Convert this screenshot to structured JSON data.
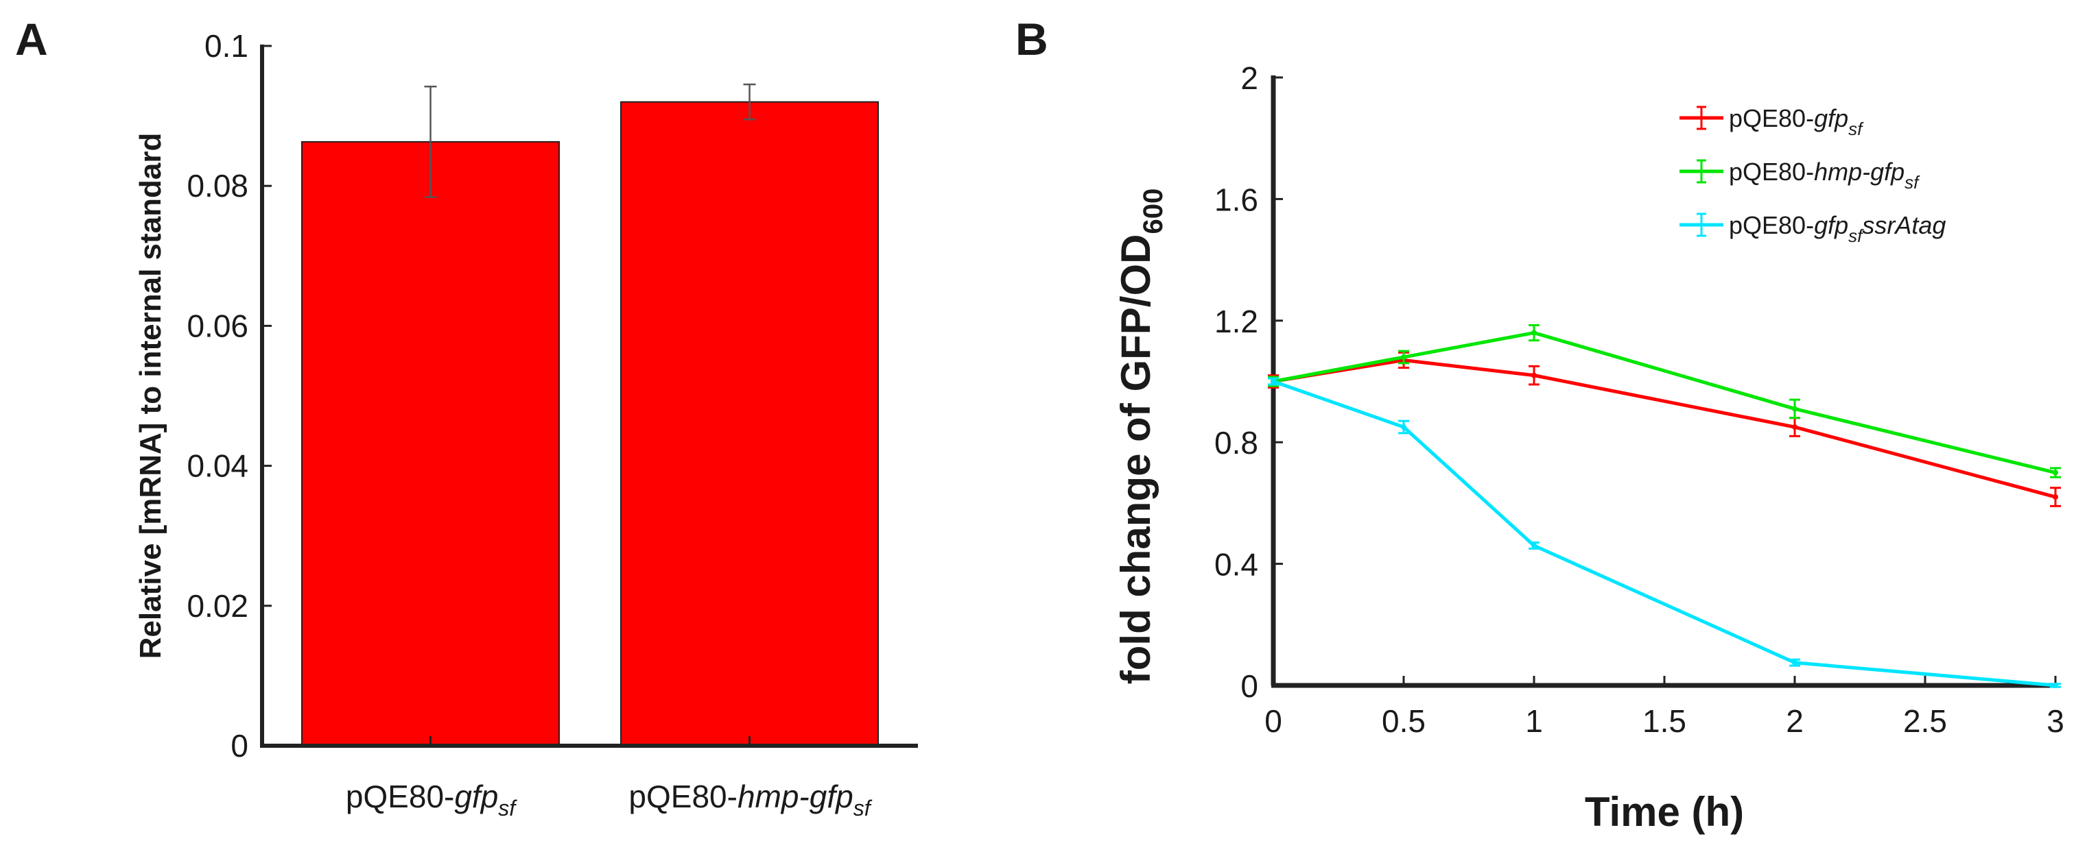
{
  "chart_data": [
    {
      "panel": "A",
      "type": "bar",
      "title": "",
      "xlabel": "",
      "ylabel": "Relative [mRNA] to internal standard",
      "ylim": [
        0,
        0.1
      ],
      "yticks": [
        "0",
        "0.02",
        "0.04",
        "0.06",
        "0.08",
        "0.1"
      ],
      "ytick_values": [
        0,
        0.02,
        0.04,
        0.06,
        0.08,
        0.1
      ],
      "bar_color": "#ff0000",
      "categories": [
        {
          "prefix": "pQE80-",
          "italic": "gfp",
          "sub": "sf",
          "suffix": ""
        },
        {
          "prefix": "pQE80-",
          "italic": "hmp-gfp",
          "sub": "sf",
          "suffix": ""
        }
      ],
      "values": [
        0.0863,
        0.092
      ],
      "errors": [
        0.0079,
        0.0025
      ]
    },
    {
      "panel": "B",
      "type": "line",
      "title": "",
      "xlabel": "Time (h)",
      "ylabel": {
        "main": "fold change of GFP/OD",
        "sub": "600"
      },
      "xlim": [
        0,
        3
      ],
      "ylim": [
        0,
        2
      ],
      "xticks": [
        "0",
        "0.5",
        "1",
        "1.5",
        "2",
        "2.5",
        "3"
      ],
      "xtick_values": [
        0,
        0.5,
        1,
        1.5,
        2,
        2.5,
        3
      ],
      "yticks": [
        "0",
        "0.4",
        "0.8",
        "1.2",
        "1.6",
        "2"
      ],
      "ytick_values": [
        0,
        0.4,
        0.8,
        1.2,
        1.6,
        2
      ],
      "legend_position": "top-right",
      "x": [
        0,
        0.5,
        1,
        2,
        3
      ],
      "series": [
        {
          "name": {
            "prefix": "pQE80-",
            "italic": "gfp",
            "sub": "sf",
            "suffix": ""
          },
          "color": "#ff0000",
          "values": [
            1.0,
            1.07,
            1.02,
            0.85,
            0.62
          ],
          "errors": [
            0.02,
            0.025,
            0.03,
            0.03,
            0.03
          ]
        },
        {
          "name": {
            "prefix": "pQE80-",
            "italic": "hmp-gfp",
            "sub": "sf",
            "suffix": ""
          },
          "color": "#00e600",
          "values": [
            1.0,
            1.08,
            1.16,
            0.91,
            0.7
          ],
          "errors": [
            0.015,
            0.02,
            0.025,
            0.03,
            0.015
          ]
        },
        {
          "name": {
            "prefix": "pQE80-",
            "italic": "gfp",
            "sub": "sf",
            "suffix": "ssrAtag"
          },
          "color": "#00e5ff",
          "values": [
            1.0,
            0.85,
            0.46,
            0.075,
            0.0
          ],
          "errors": [
            0.01,
            0.02,
            0.01,
            0.01,
            0.005
          ]
        }
      ]
    }
  ],
  "panel_labels": {
    "a": "A",
    "b": "B"
  }
}
